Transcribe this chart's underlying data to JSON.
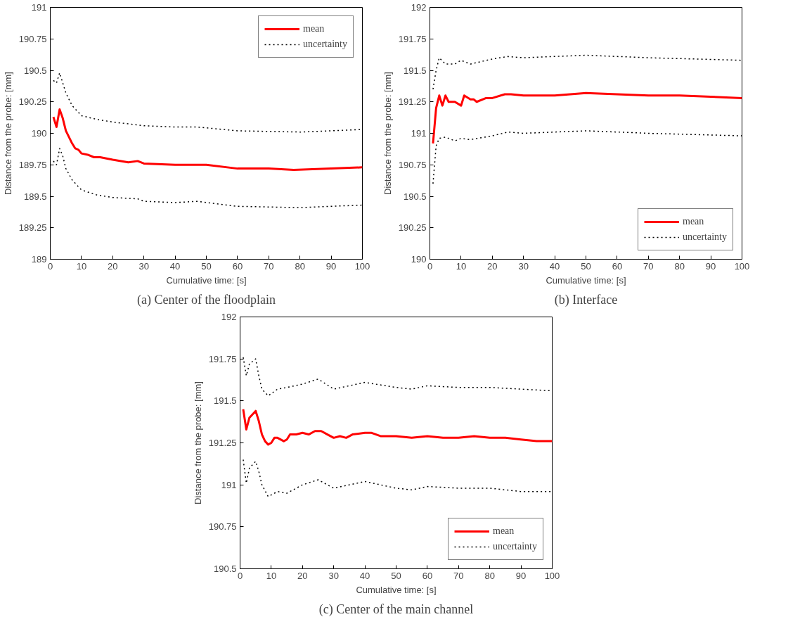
{
  "chart_data": [
    {
      "type": "line",
      "xlabel": "Cumulative time: [s]",
      "ylabel": "Distance from the probe: [mm]",
      "annotations": [
        "(a) Center of the floodplain"
      ],
      "xlim": [
        0,
        100
      ],
      "xticks": [
        0,
        10,
        20,
        30,
        40,
        50,
        60,
        70,
        80,
        90,
        100
      ],
      "ylim": [
        189,
        191
      ],
      "yticks": [
        189,
        189.25,
        189.5,
        189.75,
        190,
        190.25,
        190.5,
        190.75,
        191
      ],
      "grid": false,
      "legend": "top right",
      "series": [
        {
          "name": "mean",
          "color": "#ff0000",
          "line_style": "solid",
          "x": [
            1,
            2,
            3,
            4,
            5,
            7,
            8,
            9,
            10,
            12,
            14,
            16,
            20,
            25,
            28,
            30,
            40,
            47,
            50,
            60,
            70,
            78,
            90,
            100
          ],
          "values": [
            190.13,
            190.05,
            190.19,
            190.12,
            190.02,
            189.92,
            189.88,
            189.87,
            189.84,
            189.83,
            189.81,
            189.81,
            189.79,
            189.77,
            189.78,
            189.76,
            189.75,
            189.75,
            189.75,
            189.72,
            189.72,
            189.71,
            189.72,
            189.73
          ]
        },
        {
          "name": "uncertainty",
          "color": "#000000",
          "line_style": "dotted",
          "x": [
            1,
            2,
            3,
            4,
            5,
            7,
            10,
            15,
            20,
            30,
            40,
            47,
            60,
            80,
            100
          ],
          "values": [
            190.42,
            190.4,
            190.48,
            190.4,
            190.32,
            190.22,
            190.14,
            190.11,
            190.09,
            190.06,
            190.05,
            190.05,
            190.02,
            190.01,
            190.03
          ]
        },
        {
          "color": "#000000",
          "line_style": "dotted",
          "x": [
            1,
            2,
            3,
            4,
            5,
            7,
            10,
            15,
            20,
            28,
            30,
            40,
            47,
            60,
            80,
            100
          ],
          "values": [
            189.78,
            189.75,
            189.88,
            189.82,
            189.72,
            189.63,
            189.55,
            189.51,
            189.49,
            189.48,
            189.46,
            189.45,
            189.46,
            189.42,
            189.41,
            189.43
          ]
        }
      ]
    },
    {
      "type": "line",
      "xlabel": "Cumulative time: [s]",
      "ylabel": "Distance from the probe: [mm]",
      "annotations": [
        "(b) Interface"
      ],
      "xlim": [
        0,
        100
      ],
      "xticks": [
        0,
        10,
        20,
        30,
        40,
        50,
        60,
        70,
        80,
        90,
        100
      ],
      "ylim": [
        190,
        192
      ],
      "yticks": [
        190,
        190.25,
        190.5,
        190.75,
        191,
        191.25,
        191.5,
        191.75,
        192
      ],
      "grid": false,
      "legend": "bottom right",
      "series": [
        {
          "name": "mean",
          "color": "#ff0000",
          "line_style": "solid",
          "x": [
            1,
            2,
            3,
            4,
            5,
            6,
            8,
            10,
            11,
            13,
            14,
            15,
            18,
            20,
            24,
            26,
            30,
            40,
            50,
            60,
            70,
            80,
            90,
            100
          ],
          "values": [
            190.92,
            191.2,
            191.3,
            191.22,
            191.3,
            191.25,
            191.25,
            191.22,
            191.3,
            191.27,
            191.27,
            191.25,
            191.28,
            191.28,
            191.31,
            191.31,
            191.3,
            191.3,
            191.32,
            191.31,
            191.3,
            191.3,
            191.29,
            191.28
          ]
        },
        {
          "name": "uncertainty",
          "color": "#000000",
          "line_style": "dotted",
          "x": [
            1,
            2,
            3,
            5,
            8,
            10,
            13,
            20,
            25,
            30,
            50,
            70,
            100
          ],
          "values": [
            191.35,
            191.5,
            191.6,
            191.55,
            191.55,
            191.58,
            191.55,
            191.59,
            191.61,
            191.6,
            191.62,
            191.6,
            191.58
          ]
        },
        {
          "color": "#000000",
          "line_style": "dotted",
          "x": [
            1,
            2,
            3,
            5,
            8,
            10,
            13,
            20,
            25,
            30,
            50,
            70,
            100
          ],
          "values": [
            190.6,
            190.9,
            190.96,
            190.97,
            190.94,
            190.96,
            190.95,
            190.98,
            191.01,
            191.0,
            191.02,
            191.0,
            190.98
          ]
        }
      ]
    },
    {
      "type": "line",
      "xlabel": "Cumulative time: [s]",
      "ylabel": "Distance from the probe: [mm]",
      "annotations": [
        "(c) Center of the main channel"
      ],
      "xlim": [
        0,
        100
      ],
      "xticks": [
        0,
        10,
        20,
        30,
        40,
        50,
        60,
        70,
        80,
        90,
        100
      ],
      "ylim": [
        190.5,
        192
      ],
      "yticks": [
        190.5,
        190.75,
        191,
        191.25,
        191.5,
        191.75,
        192
      ],
      "grid": false,
      "legend": "bottom right",
      "series": [
        {
          "name": "mean",
          "color": "#ff0000",
          "line_style": "solid",
          "x": [
            1,
            2,
            3,
            4,
            5,
            6,
            7,
            8,
            9,
            10,
            11,
            12,
            14,
            15,
            16,
            18,
            20,
            22,
            24,
            26,
            28,
            30,
            32,
            34,
            36,
            40,
            42,
            45,
            50,
            55,
            60,
            65,
            70,
            75,
            80,
            85,
            90,
            95,
            100
          ],
          "values": [
            191.45,
            191.33,
            191.4,
            191.42,
            191.44,
            191.38,
            191.3,
            191.26,
            191.24,
            191.25,
            191.28,
            191.28,
            191.26,
            191.27,
            191.3,
            191.3,
            191.31,
            191.3,
            191.32,
            191.32,
            191.3,
            191.28,
            191.29,
            191.28,
            191.3,
            191.31,
            191.31,
            191.29,
            191.29,
            191.28,
            191.29,
            191.28,
            191.28,
            191.29,
            191.28,
            191.28,
            191.27,
            191.26,
            191.26
          ]
        },
        {
          "name": "uncertainty",
          "color": "#000000",
          "line_style": "dotted",
          "x": [
            1,
            2,
            3,
            5,
            6,
            7,
            9,
            12,
            15,
            20,
            25,
            30,
            40,
            50,
            55,
            60,
            70,
            80,
            90,
            100
          ],
          "values": [
            191.76,
            191.65,
            191.72,
            191.75,
            191.65,
            191.57,
            191.53,
            191.57,
            191.58,
            191.6,
            191.63,
            191.57,
            191.61,
            191.58,
            191.57,
            191.59,
            191.58,
            191.58,
            191.57,
            191.56
          ]
        },
        {
          "color": "#000000",
          "line_style": "dotted",
          "x": [
            1,
            2,
            3,
            5,
            6,
            7,
            9,
            12,
            15,
            20,
            25,
            30,
            40,
            50,
            55,
            60,
            70,
            80,
            90,
            100
          ],
          "values": [
            191.15,
            191.01,
            191.1,
            191.14,
            191.08,
            191.0,
            190.93,
            190.96,
            190.95,
            191.0,
            191.03,
            190.98,
            191.02,
            190.98,
            190.97,
            190.99,
            190.98,
            190.98,
            190.96,
            190.96
          ]
        }
      ]
    }
  ]
}
